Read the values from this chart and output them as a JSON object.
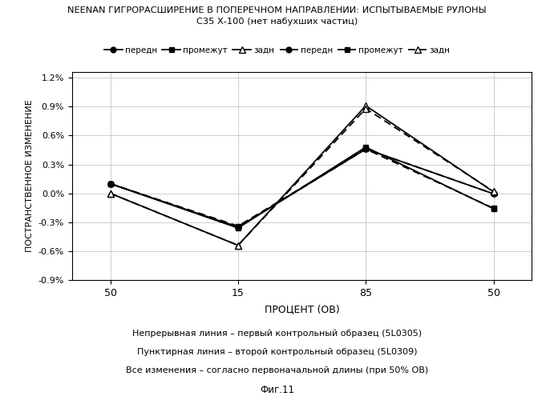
{
  "title_line1": "NEENAN ГИГРОРАСШИРЕНИЕ В ПОПЕРЕЧНОМ НАПРАВЛЕНИИ: ИСПЫТЫВАЕМЫЕ РУЛОНЫ",
  "title_line2": "С35 Х-100 (нет набухших частиц)",
  "xlabel": "ПРОЦЕНТ (ОВ)",
  "ylabel": "ПОСТРАНСТВЕННОЕ ИЗМЕНЕНИЕ",
  "x_positions": [
    0,
    1,
    2,
    3
  ],
  "x_labels": [
    "50",
    "15",
    "85",
    "50"
  ],
  "ylim_min": -0.009,
  "ylim_max": 0.0126,
  "ytick_vals": [
    -0.009,
    -0.006,
    -0.003,
    0.0,
    0.003,
    0.006,
    0.009,
    0.012
  ],
  "ytick_labels": [
    "-0.9%",
    "-0.6%",
    "-0.3%",
    "0.0%",
    "0.3%",
    "0.6%",
    "0.9%",
    "1.2%"
  ],
  "s1_peredn": [
    0.001,
    -0.0035,
    0.0046,
    -5e-05
  ],
  "s1_promezhut": [
    0.001,
    -0.0036,
    0.0048,
    -0.0016
  ],
  "s1_zadn": [
    0.0,
    -0.0054,
    0.0091,
    0.00015
  ],
  "s2_peredn": [
    0.001,
    -0.0035,
    0.0046,
    -5e-05
  ],
  "s2_promezhut": [
    0.001,
    -0.0034,
    0.0046,
    -0.00155
  ],
  "s2_zadn": [
    0.0,
    -0.0054,
    0.0088,
    0.0002
  ],
  "legend_solid": [
    "передн",
    "промежут",
    "задн"
  ],
  "legend_dashed": [
    "передн",
    "промежут",
    "задн"
  ],
  "caption1": "Непрерывная линия – первый контрольный образец (5L0305)",
  "caption2": "Пунктирная линия – второй контрольный образец (5L0309)",
  "caption3": "Все изменения – согласно первоначальной длины (при 50% ОВ)",
  "fig_label": "Фиг.11",
  "background": "#ffffff"
}
